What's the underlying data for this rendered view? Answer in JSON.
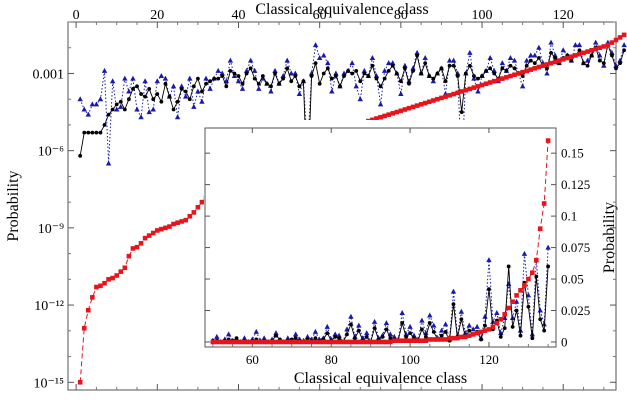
{
  "chart_data": [
    {
      "type": "line",
      "panel": "main",
      "xlabel": "Classical equivalence class",
      "ylabel": "Probability",
      "xlim": [
        -2,
        133
      ],
      "x_ticks": [
        0,
        20,
        40,
        60,
        80,
        100,
        120
      ],
      "yscale": "log",
      "ylim_exponent": [
        -15.3,
        -1.0
      ],
      "y_ticks": [
        {
          "label": "0.001",
          "exponent": -3
        },
        {
          "label": "10⁻⁶",
          "exponent": -6
        },
        {
          "label": "10⁻⁹",
          "exponent": -9
        },
        {
          "label": "10⁻¹²",
          "exponent": -12
        },
        {
          "label": "10⁻¹⁵",
          "exponent": -15
        }
      ],
      "series": [
        {
          "style": "red dashed, square markers",
          "color": "#e8141c",
          "log10_values": [
            -15.0,
            -12.9,
            -12.2,
            -11.7,
            -11.3,
            -11.25,
            -11.15,
            -11.0,
            -10.95,
            -10.85,
            -10.7,
            -10.55,
            -10.1,
            -9.8,
            -9.75,
            -9.6,
            -9.4,
            -9.3,
            -9.2,
            -9.1,
            -9.05,
            -9.0,
            -8.95,
            -8.85,
            -8.8,
            -8.75,
            -8.7,
            -8.55,
            -8.4,
            -8.2,
            -8.0,
            -7.85,
            -7.7,
            -7.55,
            -7.4,
            -7.3,
            -7.25,
            -7.2,
            -7.1,
            -7.0,
            -6.9,
            -6.8,
            -6.75,
            -6.7,
            -6.6,
            -6.5,
            -6.45,
            -6.35,
            -6.25,
            -6.15,
            -6.05,
            -5.95,
            -5.85,
            -5.8,
            -5.75,
            -5.7,
            -5.65,
            -5.6,
            -5.55,
            -5.45,
            -5.4,
            -5.35,
            -5.3,
            -5.25,
            -5.2,
            -5.15,
            -5.1,
            -5.05,
            -5.0,
            -4.95,
            -4.9,
            -4.85,
            -4.8,
            -4.75,
            -4.7,
            -4.65,
            -4.6,
            -4.55,
            -4.5,
            -4.45,
            -4.4,
            -4.35,
            -4.3,
            -4.25,
            -4.2,
            -4.15,
            -4.1,
            -4.05,
            -4.0,
            -3.95,
            -3.9,
            -3.85,
            -3.8,
            -3.75,
            -3.7,
            -3.65,
            -3.6,
            -3.55,
            -3.5,
            -3.45,
            -3.4,
            -3.35,
            -3.3,
            -3.25,
            -3.2,
            -3.15,
            -3.1,
            -3.05,
            -3.0,
            -2.95,
            -2.9,
            -2.85,
            -2.8,
            -2.75,
            -2.7,
            -2.65,
            -2.6,
            -2.55,
            -2.5,
            -2.45,
            -2.4,
            -2.35,
            -2.3,
            -2.25,
            -2.2,
            -2.15,
            -2.1,
            -2.05,
            -2.0,
            -1.95,
            -1.9,
            -1.8,
            -1.7,
            -1.6,
            -1.5
          ]
        },
        {
          "style": "black solid, circle markers",
          "color": "#000000",
          "log10_values": [
            -6.2,
            -5.3,
            -5.3,
            -5.3,
            -5.3,
            -5.3,
            -5.0,
            -4.6,
            -4.4,
            -4.2,
            -4.1,
            -4.4,
            -4.0,
            -3.6,
            -3.5,
            -3.8,
            -3.9,
            -3.6,
            -4.0,
            -3.8,
            -4.1,
            -3.4,
            -3.9,
            -4.4,
            -4.1,
            -3.6,
            -3.7,
            -4.0,
            -3.5,
            -3.2,
            -3.7,
            -3.4,
            -3.3,
            -3.2,
            -3.2,
            -3.1,
            -3.5,
            -2.9,
            -3.0,
            -3.1,
            -3.4,
            -3.0,
            -2.8,
            -3.2,
            -3.4,
            -3.1,
            -3.4,
            -3.5,
            -3.0,
            -3.4,
            -3.2,
            -2.8,
            -3.3,
            -3.1,
            -3.5,
            -3.3,
            -7.5,
            -3.1,
            -2.6,
            -3.4,
            -3.0,
            -2.8,
            -3.2,
            -3.1,
            -3.5,
            -3.1,
            -2.9,
            -3.0,
            -2.9,
            -3.3,
            -3.0,
            -3.1,
            -2.7,
            -3.2,
            -3.5,
            -3.2,
            -2.9,
            -2.7,
            -3.0,
            -3.3,
            -2.8,
            -3.4,
            -2.9,
            -2.3,
            -3.0,
            -2.6,
            -3.1,
            -3.2,
            -3.0,
            -2.8,
            -3.3,
            -2.7,
            -2.7,
            -3.1,
            -4.5,
            -3.0,
            -2.7,
            -3.1,
            -3.2,
            -3.1,
            -2.9,
            -2.8,
            -3.0,
            -3.2,
            -2.8,
            -2.9,
            -2.7,
            -2.8,
            -3.0,
            -3.1,
            -2.7,
            -2.5,
            -2.6,
            -2.4,
            -2.7,
            -2.8,
            -2.2,
            -2.4,
            -2.6,
            -2.4,
            -2.3,
            -2.5,
            -2.3,
            -2.1,
            -2.6,
            -2.7,
            -2.3,
            -2.0,
            -2.5,
            -2.6,
            -1.9,
            -2.3,
            -2.8,
            -2.6,
            -2.1
          ]
        },
        {
          "style": "blue dotted, triangle markers",
          "color": "#1a1aa8",
          "log10_values": [
            -4.0,
            -4.4,
            -4.6,
            -4.2,
            -4.2,
            -4.0,
            -2.9,
            -6.5,
            -3.3,
            -4.4,
            -4.3,
            -3.2,
            -3.7,
            -3.2,
            -4.4,
            -4.7,
            -3.3,
            -4.5,
            -4.4,
            -3.3,
            -3.1,
            -3.2,
            -3.9,
            -3.5,
            -4.7,
            -3.5,
            -3.9,
            -3.2,
            -4.3,
            -3.7,
            -4.1,
            -3.2,
            -3.6,
            -3.2,
            -2.9,
            -3.0,
            -3.3,
            -2.5,
            -3.1,
            -3.3,
            -3.6,
            -2.9,
            -2.5,
            -2.9,
            -3.6,
            -3.2,
            -3.4,
            -3.7,
            -2.9,
            -3.4,
            -3.1,
            -2.5,
            -3.0,
            -3.0,
            -3.8,
            -3.3,
            -6.0,
            -3.0,
            -1.9,
            -2.4,
            -2.3,
            -2.6,
            -3.7,
            -3.0,
            -3.5,
            -3.0,
            -2.9,
            -2.6,
            -3.5,
            -4.0,
            -2.9,
            -3.1,
            -2.4,
            -3.1,
            -4.2,
            -2.9,
            -2.6,
            -2.6,
            -3.0,
            -3.8,
            -2.7,
            -3.3,
            -2.8,
            -2.2,
            -3.0,
            -2.4,
            -3.1,
            -3.3,
            -3.0,
            -2.8,
            -3.8,
            -2.5,
            -2.5,
            -3.0,
            -6.8,
            -3.0,
            -2.2,
            -3.2,
            -3.7,
            -3.1,
            -2.9,
            -2.4,
            -2.9,
            -3.3,
            -2.6,
            -2.9,
            -2.4,
            -2.5,
            -3.0,
            -3.5,
            -2.5,
            -2.3,
            -2.3,
            -2.0,
            -2.6,
            -3.0,
            -1.8,
            -2.3,
            -2.6,
            -2.1,
            -2.3,
            -2.5,
            -1.9,
            -1.9,
            -2.6,
            -2.5,
            -2.3,
            -1.8,
            -2.3,
            -2.7,
            -1.8,
            -2.2,
            -2.7,
            -2.5,
            -1.9
          ]
        }
      ]
    },
    {
      "type": "line",
      "panel": "inset",
      "xlabel": "Classical equivalence class",
      "ylabel": "Probability",
      "xlim": [
        48,
        137
      ],
      "x_ticks": [
        60,
        80,
        100,
        120
      ],
      "ylim": [
        -0.004,
        0.17
      ],
      "y_ticks": [
        0,
        0.025,
        0.05,
        0.075,
        0.1,
        0.125,
        0.15
      ],
      "y_tick_labels": [
        "0",
        "0.025",
        "0.05",
        "0.075",
        "0.1",
        "0.125",
        "0.15"
      ],
      "x_start": 50,
      "series": [
        {
          "style": "red dashed, square markers",
          "color": "#e8141c",
          "values": [
            0,
            0,
            0,
            0,
            0,
            0,
            0,
            0,
            0,
            0,
            0,
            0,
            0,
            0,
            0,
            0,
            0,
            0,
            0,
            0,
            0,
            0,
            0,
            0,
            0,
            0,
            0,
            0,
            0,
            0,
            0,
            0,
            0,
            0,
            0,
            0,
            0,
            0,
            0,
            0,
            0,
            0,
            0,
            0,
            0,
            0,
            0.001,
            0.001,
            0.001,
            0.001,
            0.001,
            0.001,
            0.001,
            0.001,
            0.001,
            0.002,
            0.002,
            0.002,
            0.002,
            0.002,
            0.003,
            0.003,
            0.003,
            0.004,
            0.004,
            0.005,
            0.006,
            0.007,
            0.008,
            0.009,
            0.01,
            0.012,
            0.015,
            0.018,
            0.022,
            0.027,
            0.032,
            0.037,
            0.041,
            0.045,
            0.05,
            0.055,
            0.065,
            0.09,
            0.11,
            0.16
          ]
        },
        {
          "style": "black solid, circle markers",
          "color": "#000000",
          "values": [
            0.001,
            0.001,
            0.0,
            0.001,
            0.002,
            0.001,
            0.003,
            0.0,
            0.001,
            0.0,
            0.001,
            0.002,
            0.0,
            0.001,
            0.0,
            0.001,
            0.005,
            0.002,
            0.0,
            0.001,
            0.002,
            0.003,
            0.001,
            0.0,
            0.002,
            0.001,
            0.003,
            0.001,
            0.002,
            0.007,
            0.001,
            0.004,
            0.003,
            0.0,
            0.006,
            0.014,
            0.003,
            0.009,
            0.001,
            0.004,
            0.0,
            0.011,
            0.002,
            0.004,
            0.01,
            0.003,
            0.002,
            0.001,
            0.015,
            0.004,
            0.007,
            0.003,
            0.001,
            0.01,
            0.004,
            0.015,
            0.008,
            0.002,
            0.005,
            0.008,
            0.001,
            0.03,
            0.003,
            0.018,
            0.004,
            0.009,
            0.006,
            0.008,
            0.002,
            0.013,
            0.042,
            0.01,
            0.017,
            0.004,
            0.011,
            0.06,
            0.012,
            0.025,
            0.005,
            0.047,
            0.028,
            0.003,
            0.052,
            0.018,
            0.009,
            0.06
          ]
        },
        {
          "style": "blue dotted, triangle markers",
          "color": "#1a1aa8",
          "values": [
            0.001,
            0.004,
            0.0,
            0.002,
            0.006,
            0.001,
            0.002,
            0.0,
            0.003,
            0.0,
            0.002,
            0.008,
            0.001,
            0.003,
            0.0,
            0.002,
            0.007,
            0.001,
            0.0,
            0.003,
            0.001,
            0.006,
            0.002,
            0.001,
            0.004,
            0.002,
            0.008,
            0.002,
            0.003,
            0.012,
            0.002,
            0.006,
            0.005,
            0.0,
            0.01,
            0.02,
            0.004,
            0.013,
            0.003,
            0.007,
            0.0,
            0.016,
            0.003,
            0.005,
            0.015,
            0.006,
            0.004,
            0.002,
            0.023,
            0.006,
            0.012,
            0.005,
            0.002,
            0.017,
            0.007,
            0.021,
            0.013,
            0.003,
            0.009,
            0.014,
            0.002,
            0.04,
            0.005,
            0.024,
            0.007,
            0.013,
            0.01,
            0.012,
            0.003,
            0.02,
            0.065,
            0.016,
            0.023,
            0.007,
            0.019,
            0.046,
            0.019,
            0.032,
            0.009,
            0.07,
            0.037,
            0.006,
            0.065,
            0.025,
            0.014,
            0.075
          ]
        }
      ]
    }
  ]
}
